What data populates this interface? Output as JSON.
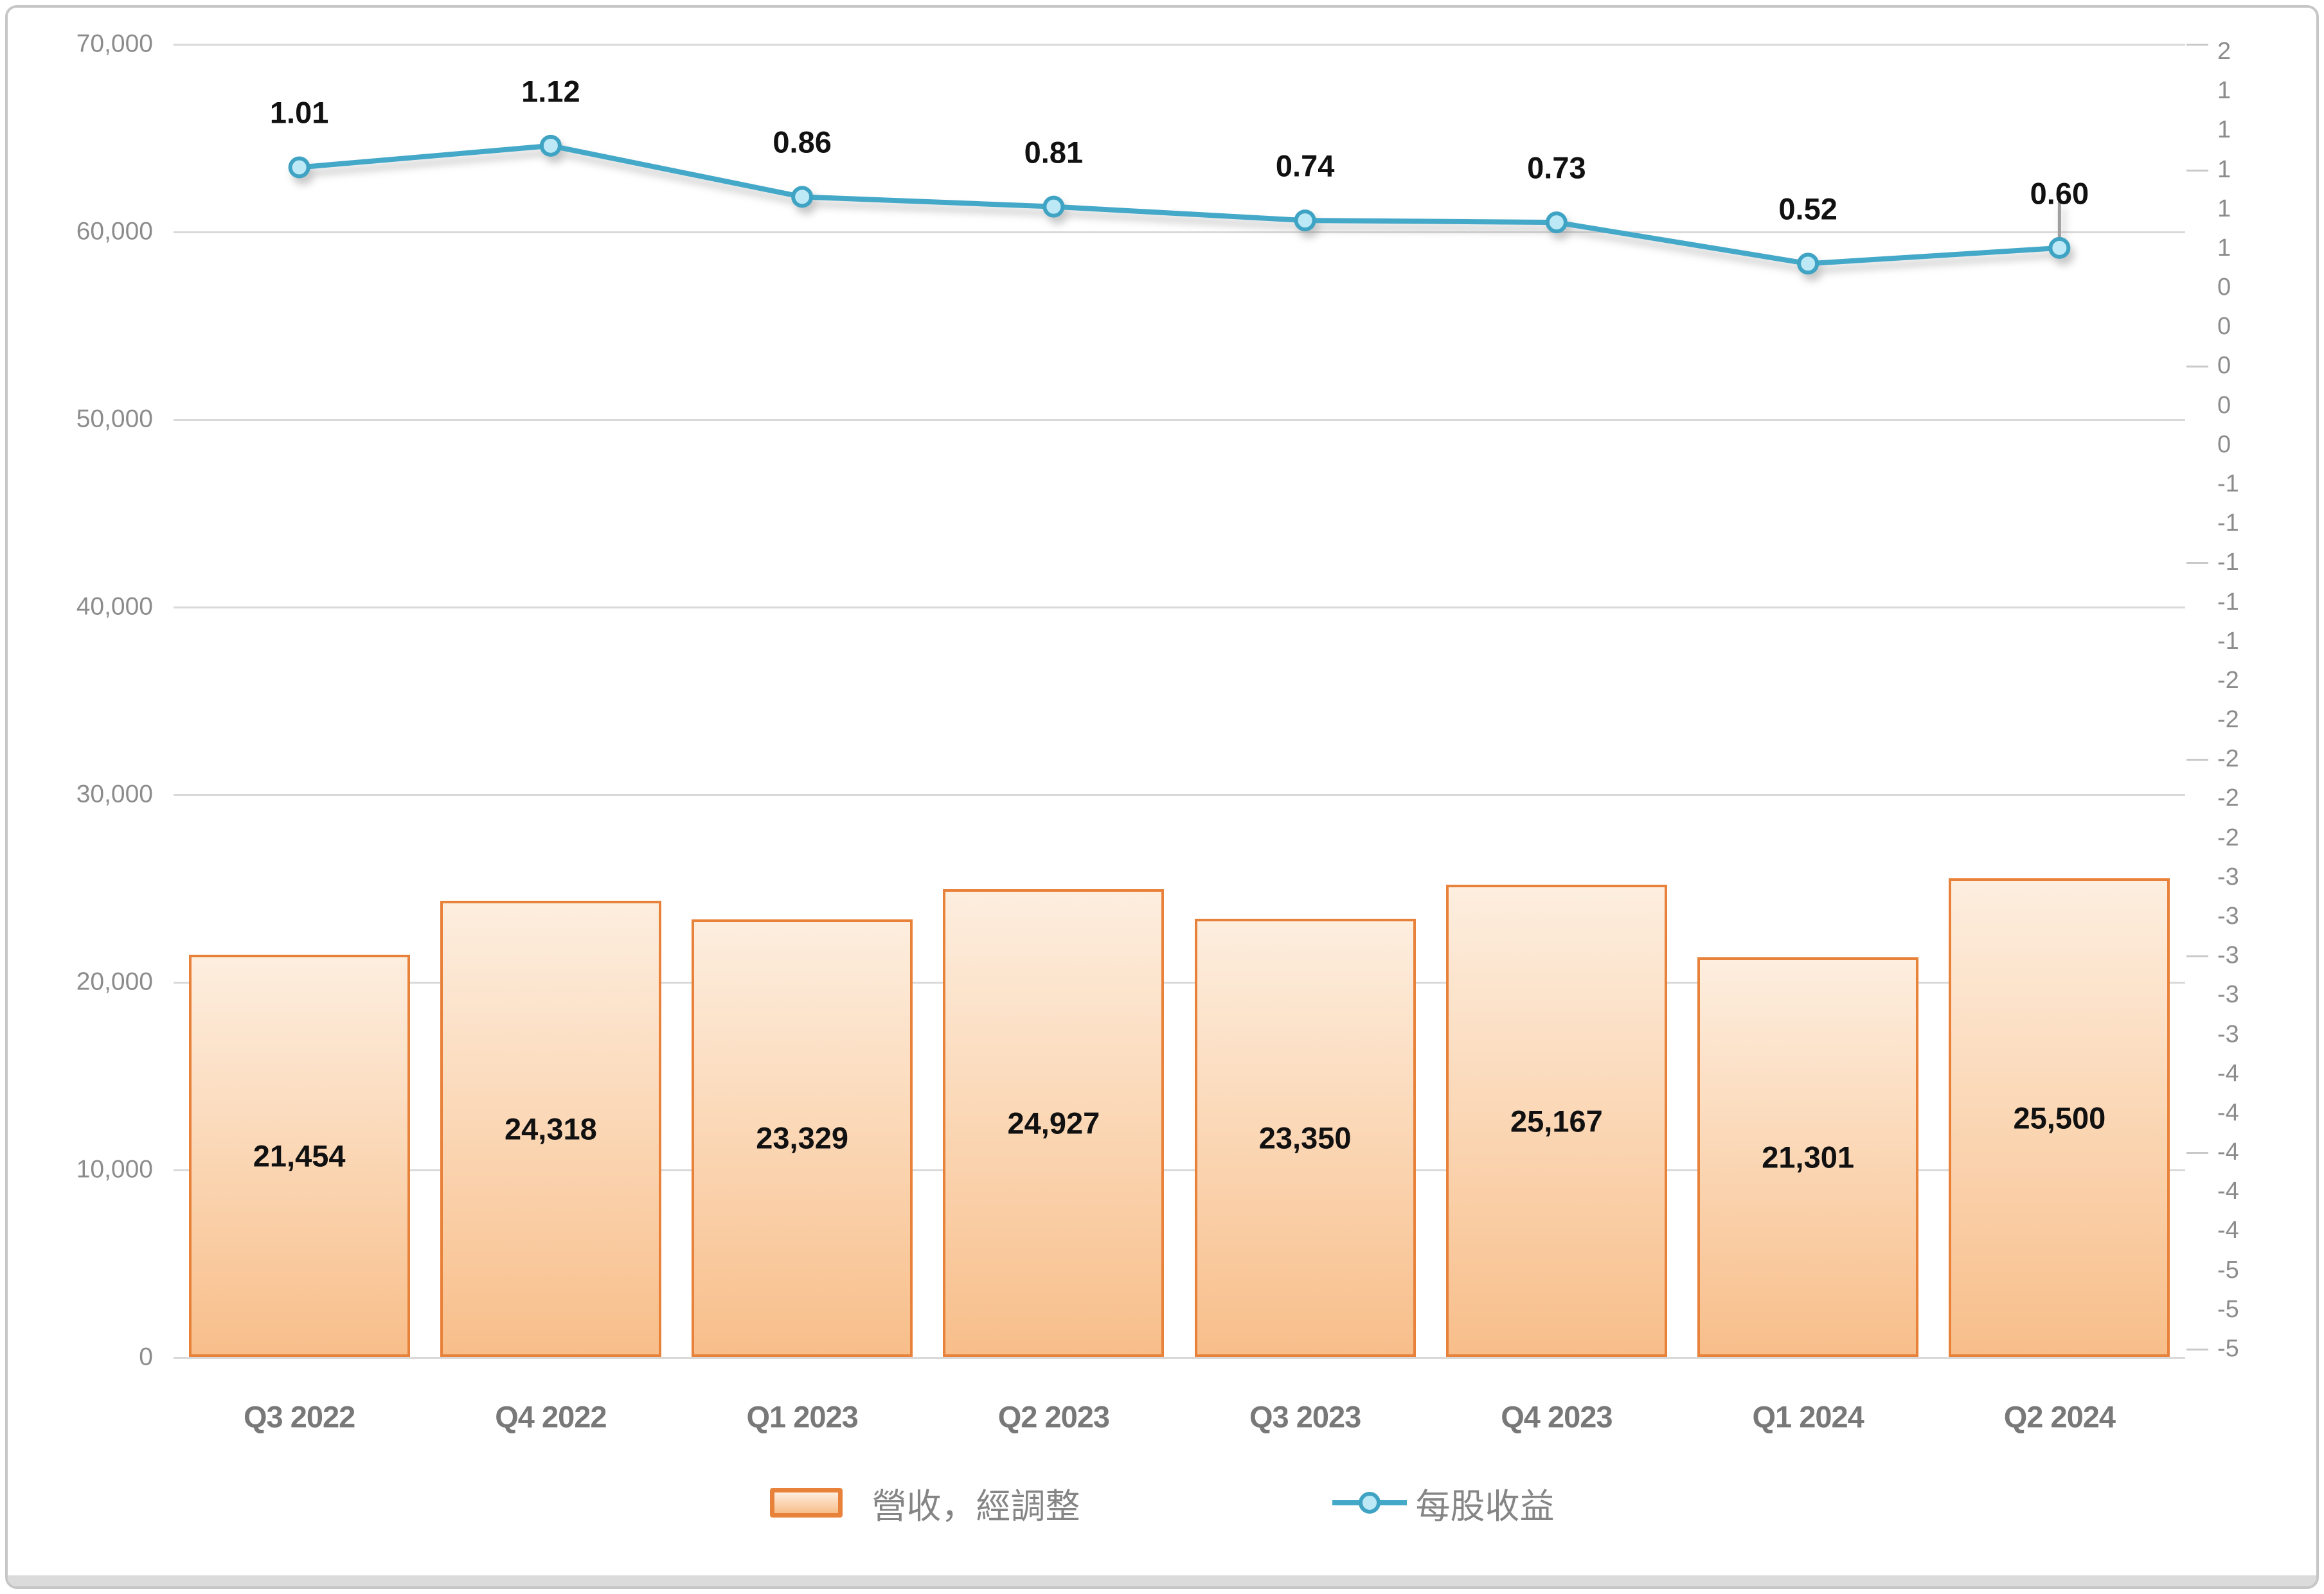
{
  "chart_data": {
    "type": "combo-bar-line",
    "categories": [
      "Q3 2022",
      "Q4 2022",
      "Q1 2023",
      "Q2 2023",
      "Q3 2023",
      "Q4 2023",
      "Q1 2024",
      "Q2 2024"
    ],
    "series": [
      {
        "name": "營收，經調整",
        "type": "bar",
        "axis": "left",
        "values": [
          21454,
          24318,
          23329,
          24927,
          23350,
          25167,
          21301,
          25500
        ],
        "labels": [
          "21,454",
          "24,318",
          "23,329",
          "24,927",
          "23,350",
          "25,167",
          "21,301",
          "25,500"
        ]
      },
      {
        "name": "每股收益",
        "type": "line",
        "axis": "right",
        "values": [
          1.01,
          1.12,
          0.86,
          0.81,
          0.74,
          0.73,
          0.52,
          0.6
        ],
        "labels": [
          "1.01",
          "1.12",
          "0.86",
          "0.81",
          "0.74",
          "0.73",
          "0.52",
          "0.60"
        ]
      }
    ],
    "left_axis": {
      "min": 0,
      "max": 70000,
      "step": 10000,
      "tick_labels": [
        "70,000",
        "60,000",
        "50,000",
        "40,000",
        "30,000",
        "20,000",
        "10,000",
        "0"
      ]
    },
    "right_axis": {
      "max": 1.6,
      "min": -5.0,
      "step": 0.2,
      "tick_labels": [
        "2",
        "1",
        "1",
        "1",
        "1",
        "1",
        "0",
        "0",
        "0",
        "0",
        "0",
        "-1",
        "-1",
        "-1",
        "-1",
        "-1",
        "-2",
        "-2",
        "-2",
        "-2",
        "-2",
        "-3",
        "-3",
        "-3",
        "-3",
        "-3",
        "-4",
        "-4",
        "-4",
        "-4",
        "-4",
        "-5",
        "-5",
        "-5"
      ]
    },
    "grid": true,
    "legend_position": "bottom",
    "annotations": {
      "last_line_point_has_gray_tick": true
    },
    "colors": {
      "bar_border": "#E8823B",
      "bar_fill_top": "#FDEEDF",
      "bar_fill_bottom": "#F8BE8A",
      "line": "#44A8C8",
      "marker_fill": "#BDE9F7",
      "marker_border": "#3FA3C4",
      "gridline": "#D9D9D9",
      "axis_text": "#8C8C8C",
      "x_axis_text": "#787878",
      "data_label": "#111111",
      "legend_text": "#858585",
      "frame_border": "#C6C6C6",
      "bottom_band": "#DBDBDB",
      "point_tick": "#A0A0A0"
    }
  },
  "legend": {
    "revenue_label": "營收，經調整",
    "eps_label": "每股收益"
  }
}
